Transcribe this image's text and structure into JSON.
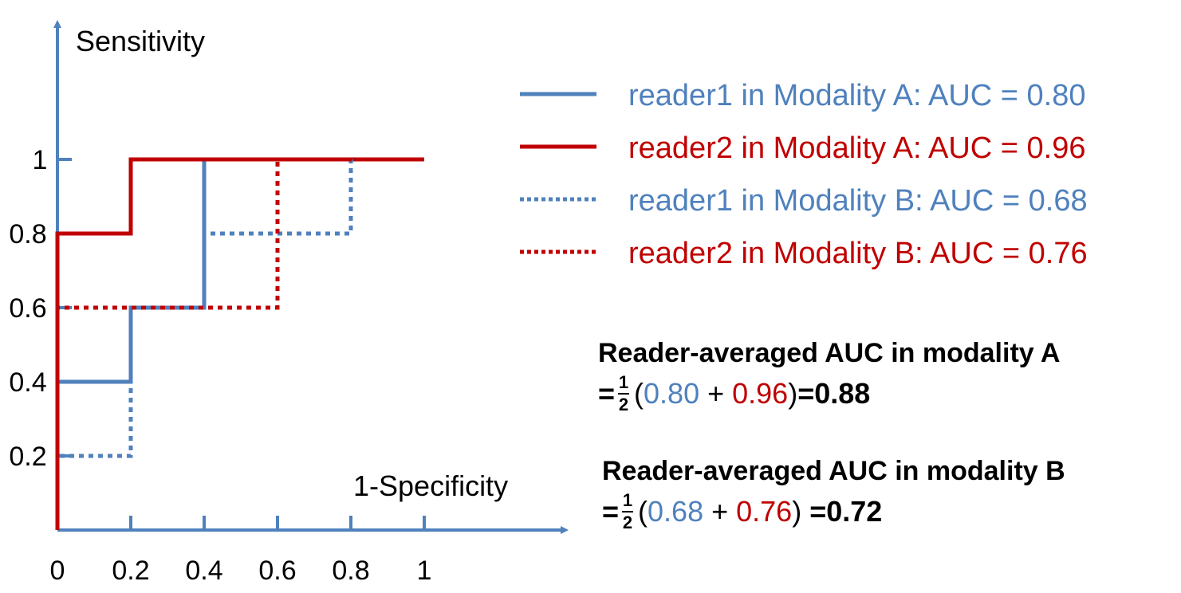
{
  "chart_data": {
    "type": "line",
    "xlabel": "1-Specificity",
    "ylabel": "Sensitivity",
    "xlim": [
      0,
      1
    ],
    "ylim": [
      0,
      1
    ],
    "x_ticks": [
      "0",
      "0.2",
      "0.4",
      "0.6",
      "0.8",
      "1"
    ],
    "y_ticks": [
      "0.2",
      "0.4",
      "0.6",
      "0.8",
      "1"
    ],
    "grid": false,
    "legend_position": "top-right",
    "series": [
      {
        "name": "reader1 in Modality A: AUC = 0.80",
        "color": "#4f81bd",
        "style": "solid",
        "points": [
          [
            0,
            0
          ],
          [
            0,
            0.4
          ],
          [
            0.2,
            0.4
          ],
          [
            0.2,
            0.6
          ],
          [
            0.4,
            0.6
          ],
          [
            0.4,
            1
          ],
          [
            1,
            1
          ]
        ]
      },
      {
        "name": "reader2 in Modality A: AUC = 0.96",
        "color": "#c00000",
        "style": "solid",
        "points": [
          [
            0,
            0
          ],
          [
            0,
            0.8
          ],
          [
            0.2,
            0.8
          ],
          [
            0.2,
            1
          ],
          [
            1,
            1
          ]
        ]
      },
      {
        "name": "reader1 in Modality B: AUC = 0.68",
        "color": "#4f81bd",
        "style": "dotted",
        "points": [
          [
            0,
            0
          ],
          [
            0,
            0.2
          ],
          [
            0.2,
            0.2
          ],
          [
            0.2,
            0.6
          ],
          [
            0.4,
            0.6
          ],
          [
            0.4,
            0.8
          ],
          [
            0.8,
            0.8
          ],
          [
            0.8,
            1
          ],
          [
            1,
            1
          ]
        ]
      },
      {
        "name": "reader2 in Modality B: AUC = 0.76",
        "color": "#c00000",
        "style": "dotted",
        "points": [
          [
            0,
            0
          ],
          [
            0,
            0.6
          ],
          [
            0.6,
            0.6
          ],
          [
            0.6,
            1
          ],
          [
            1,
            1
          ]
        ]
      }
    ],
    "annotations": {
      "a_title": "Reader-averaged AUC in modality A",
      "a_eq": "=",
      "a_num": "1",
      "a_den": "2",
      "a_open": "(",
      "a_v1": "0.80",
      "a_plus": " + ",
      "a_v2": "0.96",
      "a_close": ")",
      "a_result": "=0.88",
      "b_title": "Reader-averaged AUC in modality B",
      "b_eq": "=",
      "b_num": "1",
      "b_den": "2",
      "b_open": "(",
      "b_v1": "0.68",
      "b_plus": " + ",
      "b_v2": "0.76",
      "b_close": ") ",
      "b_result": "=0.72"
    }
  }
}
